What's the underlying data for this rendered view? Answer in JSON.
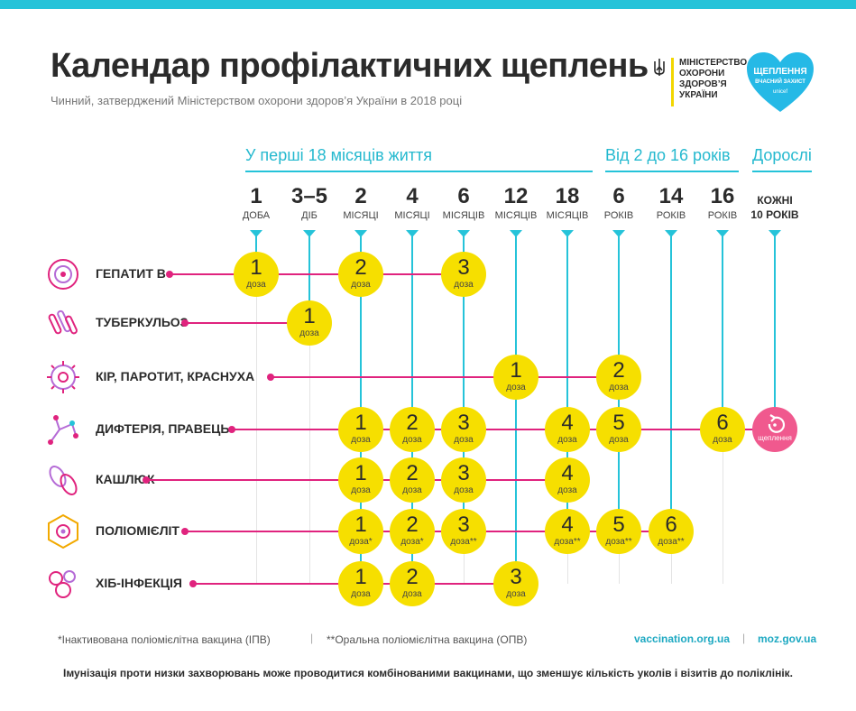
{
  "header": {
    "title": "Календар профілактичних щеплень",
    "subtitle": "Чинний, затверджений Міністерством охорони здоров’я України в 2018 році",
    "ministry_lines": [
      "МІНІСТЕРСТВО",
      "ОХОРОНИ",
      "ЗДОРОВ’Я",
      "УКРАЇНИ"
    ],
    "logo_lines": [
      "ЩЕПЛЕННЯ",
      "ВЧАСНИЙ ЗАХИСТ",
      "unicef"
    ]
  },
  "sections": [
    "У перші 18 місяців життя",
    "Від 2 до 16 років",
    "Дорослі"
  ],
  "columns": [
    {
      "num": "1",
      "unit": "ДОБА"
    },
    {
      "num": "3–5",
      "unit": "ДІБ"
    },
    {
      "num": "2",
      "unit": "МІСЯЦІ"
    },
    {
      "num": "4",
      "unit": "МІСЯЦІ"
    },
    {
      "num": "6",
      "unit": "МІСЯЦІВ"
    },
    {
      "num": "12",
      "unit": "МІСЯЦІВ"
    },
    {
      "num": "18",
      "unit": "МІСЯЦІВ"
    },
    {
      "num": "6",
      "unit": "РОКІВ"
    },
    {
      "num": "14",
      "unit": "РОКІВ"
    },
    {
      "num": "16",
      "unit": "РОКІВ"
    }
  ],
  "adult_column": [
    "КОЖНІ",
    "10 РОКІВ"
  ],
  "dose_label": "доза",
  "adult_dose_label": "щеплення",
  "diseases": [
    {
      "name": "ГЕПАТИТ В",
      "icon": "hepatitis-icon",
      "doses": [
        {
          "col": 0,
          "n": "1",
          "mark": ""
        },
        {
          "col": 2,
          "n": "2",
          "mark": ""
        },
        {
          "col": 4,
          "n": "3",
          "mark": ""
        }
      ]
    },
    {
      "name": "ТУБЕРКУЛЬОЗ",
      "icon": "tuberculosis-icon",
      "doses": [
        {
          "col": 1,
          "n": "1",
          "mark": ""
        }
      ]
    },
    {
      "name": "КІР, ПАРОТИТ, КРАСНУХА",
      "icon": "measles-icon",
      "doses": [
        {
          "col": 5,
          "n": "1",
          "mark": ""
        },
        {
          "col": 7,
          "n": "2",
          "mark": ""
        }
      ]
    },
    {
      "name": "ДИФТЕРІЯ, ПРАВЕЦЬ",
      "icon": "diphtheria-icon",
      "adult": true,
      "doses": [
        {
          "col": 2,
          "n": "1",
          "mark": ""
        },
        {
          "col": 3,
          "n": "2",
          "mark": ""
        },
        {
          "col": 4,
          "n": "3",
          "mark": ""
        },
        {
          "col": 6,
          "n": "4",
          "mark": ""
        },
        {
          "col": 7,
          "n": "5",
          "mark": ""
        },
        {
          "col": 9,
          "n": "6",
          "mark": ""
        }
      ]
    },
    {
      "name": "КАШЛЮК",
      "icon": "pertussis-icon",
      "doses": [
        {
          "col": 2,
          "n": "1",
          "mark": ""
        },
        {
          "col": 3,
          "n": "2",
          "mark": ""
        },
        {
          "col": 4,
          "n": "3",
          "mark": ""
        },
        {
          "col": 6,
          "n": "4",
          "mark": ""
        }
      ]
    },
    {
      "name": "ПОЛІОМІЄЛІТ",
      "icon": "polio-icon",
      "doses": [
        {
          "col": 2,
          "n": "1",
          "mark": "*"
        },
        {
          "col": 3,
          "n": "2",
          "mark": "*"
        },
        {
          "col": 4,
          "n": "3",
          "mark": "**"
        },
        {
          "col": 6,
          "n": "4",
          "mark": "**"
        },
        {
          "col": 7,
          "n": "5",
          "mark": "**"
        },
        {
          "col": 8,
          "n": "6",
          "mark": "**"
        }
      ]
    },
    {
      "name": "ХІБ-ІНФЕКЦІЯ",
      "icon": "hib-icon",
      "doses": [
        {
          "col": 2,
          "n": "1",
          "mark": ""
        },
        {
          "col": 3,
          "n": "2",
          "mark": ""
        },
        {
          "col": 5,
          "n": "3",
          "mark": ""
        }
      ]
    }
  ],
  "footer": {
    "note1": "*Інактивована поліомієлітна вакцина (ІПВ)",
    "note2": "**Оральна поліомієлітна вакцина (ОПВ)",
    "sep": "|",
    "link1": "vaccination.org.ua",
    "link2": "moz.gov.ua",
    "bottom": "Імунізація проти низки захворювань може проводитися комбінованими вакцинами, що зменшує кількість уколів і візитів до поліклінік."
  },
  "colors": {
    "accent": "#25c3d9",
    "dose": "#f6df00",
    "line": "#e0237e",
    "adult": "#f0598e"
  }
}
